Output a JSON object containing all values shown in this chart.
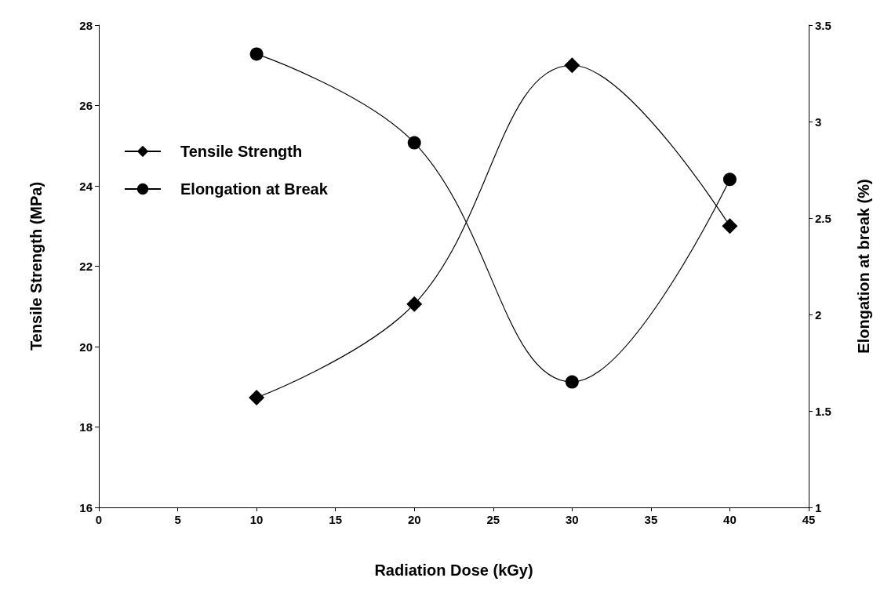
{
  "chart_data": {
    "type": "line",
    "xlabel": "Radiation Dose (kGy)",
    "ylabel": "Tensile Strength (MPa)",
    "y2label": "Elongation at break (%)",
    "x": [
      10,
      20,
      30,
      40
    ],
    "series": [
      {
        "name": "Tensile Strength",
        "color": "#000000",
        "marker": "diamond",
        "values": [
          18.73,
          21.06,
          27.0,
          23.0
        ]
      },
      {
        "name": "Elongation at Break",
        "color": "#000000",
        "marker": "circle",
        "axis": "y2",
        "values": [
          3.35,
          2.89,
          1.65,
          2.7
        ]
      }
    ],
    "xlim": [
      0,
      45
    ],
    "xticks": [
      0,
      5,
      10,
      15,
      20,
      25,
      30,
      35,
      40,
      45
    ],
    "ylim": [
      16,
      28
    ],
    "yticks": [
      16,
      18,
      20,
      22,
      24,
      26,
      28
    ],
    "y2lim": [
      1,
      3.5
    ],
    "y2ticks": [
      1,
      1.5,
      2,
      2.5,
      3,
      3.5
    ],
    "legend": "top left",
    "grid": false,
    "line_style": "solid"
  }
}
